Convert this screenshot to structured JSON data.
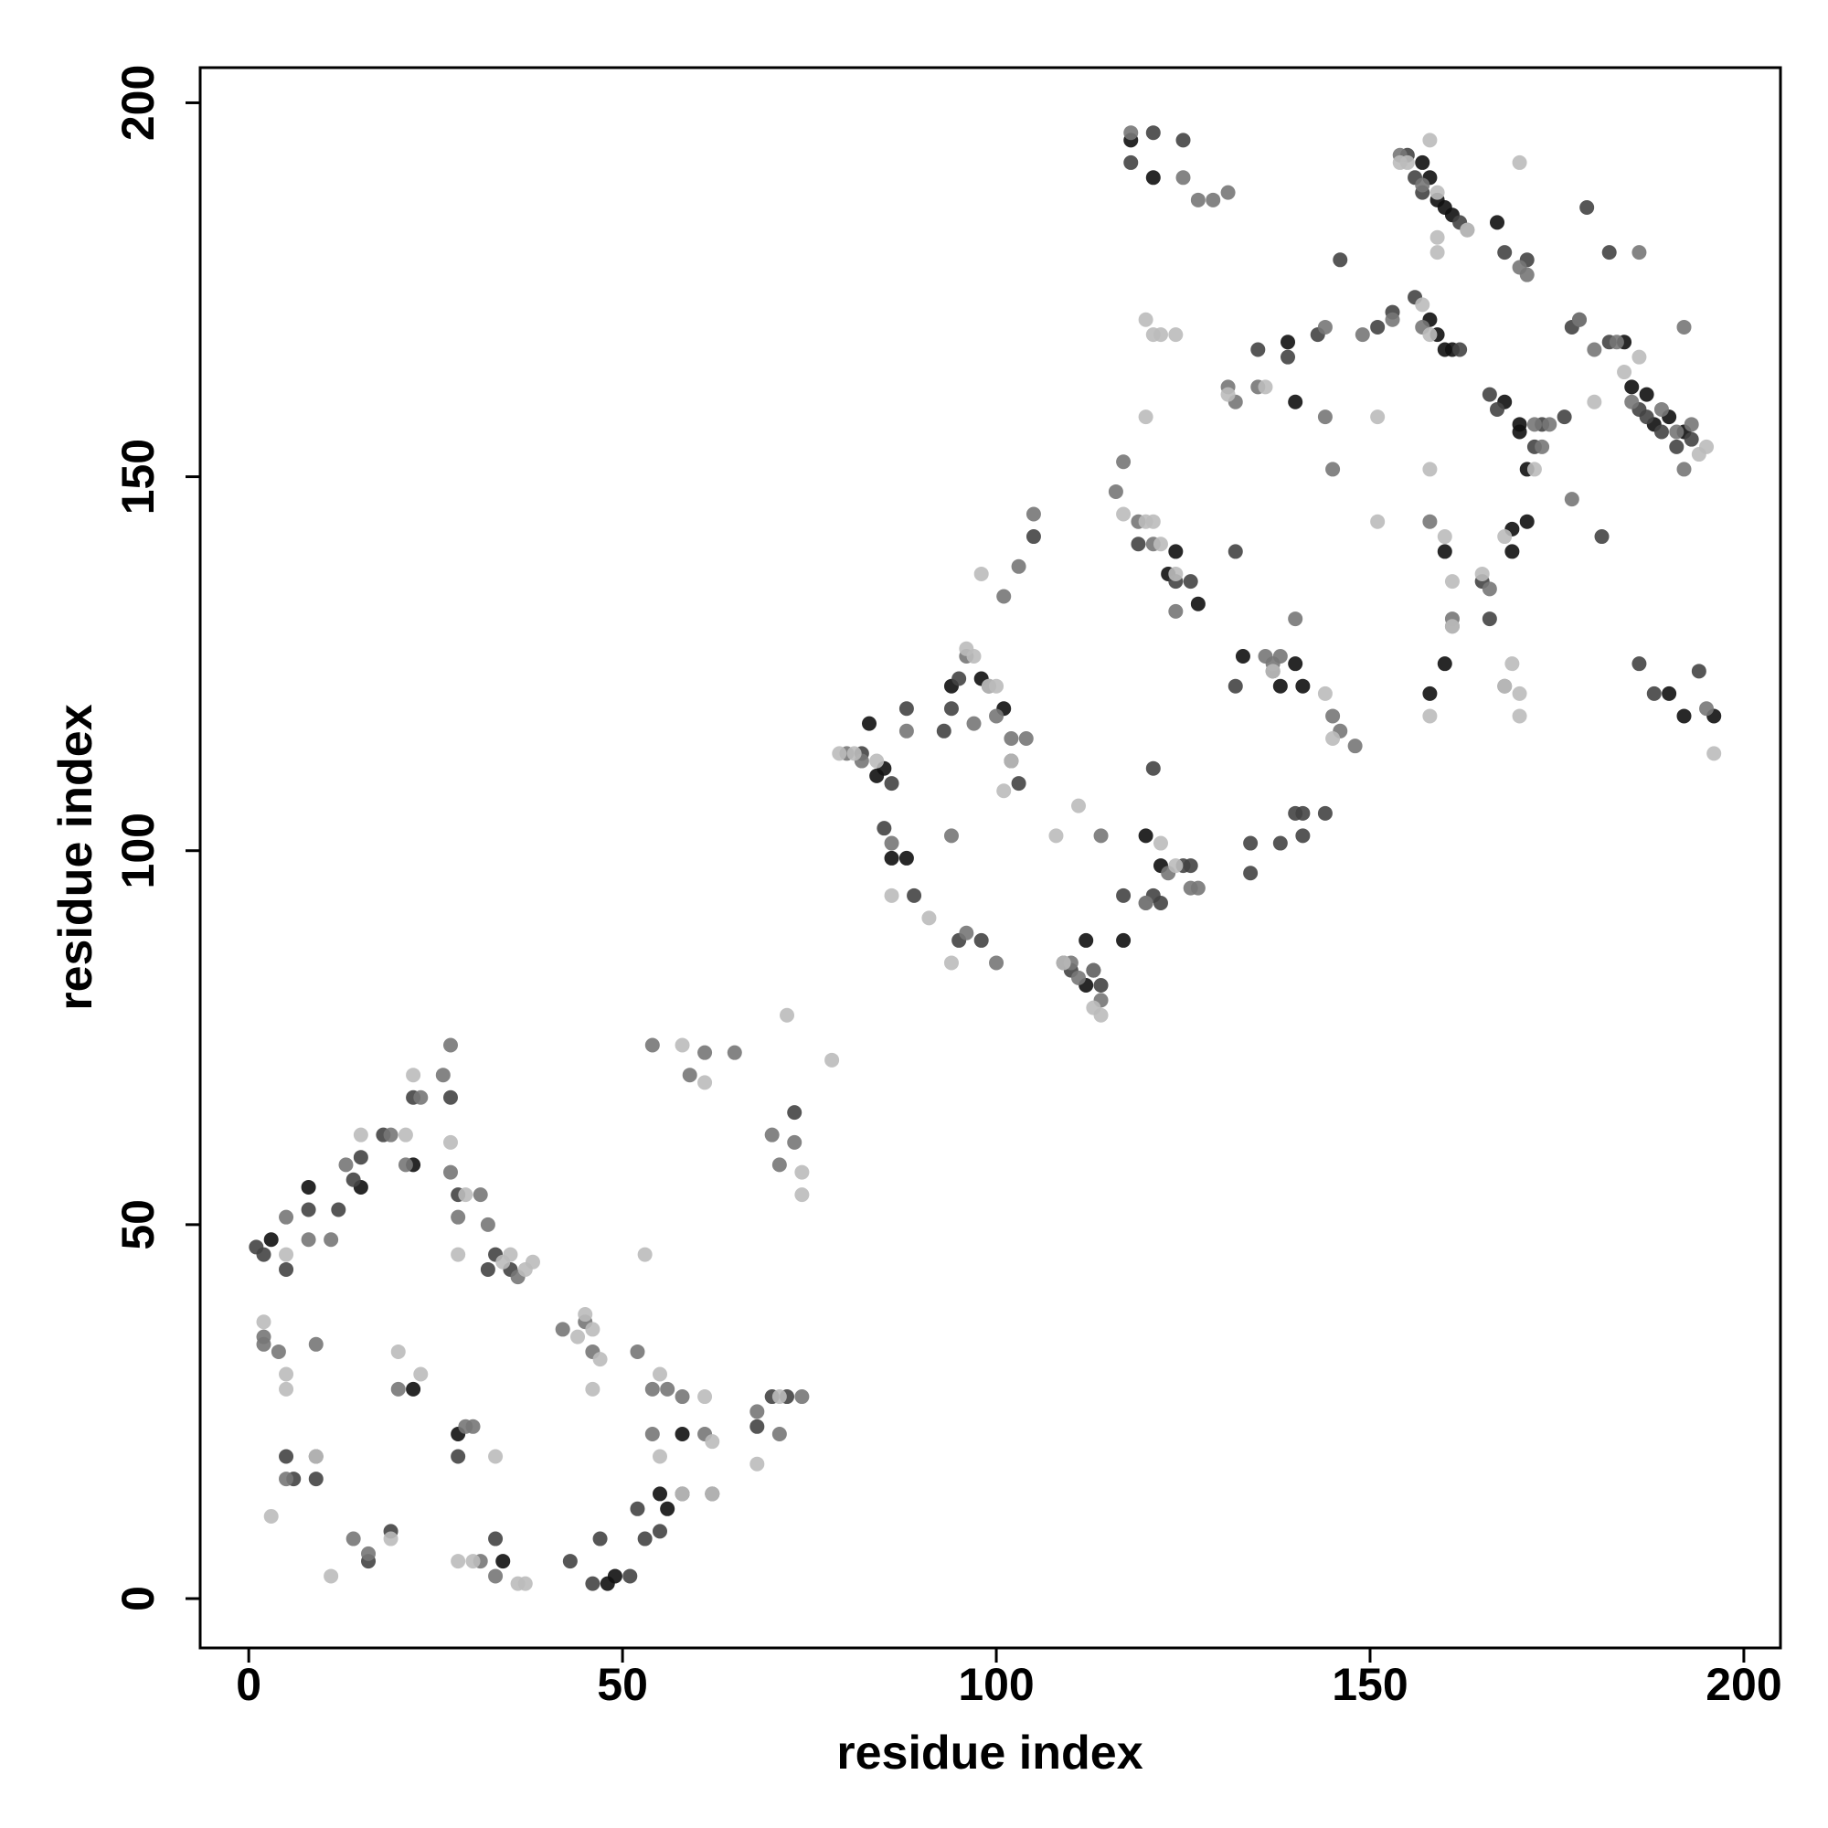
{
  "chart_data": {
    "type": "scatter",
    "x_label": "residue index",
    "y_label": "residue index",
    "xlim": [
      -6.5,
      204.9
    ],
    "ylim": [
      -6.6,
      204.7
    ],
    "xticks": [
      0,
      50,
      100,
      150,
      200
    ],
    "yticks": [
      0,
      50,
      100,
      150,
      200
    ],
    "series": [
      {
        "name": "black",
        "color": "#111111",
        "x": [
          3,
          8,
          15,
          22,
          34,
          48,
          49,
          58,
          56,
          55,
          22,
          28,
          84,
          83,
          85,
          88,
          86,
          98,
          94,
          101,
          112,
          113,
          112,
          117,
          120,
          122,
          123,
          124,
          127,
          133,
          138,
          140,
          141,
          139,
          140,
          118,
          121,
          157,
          158,
          159,
          160,
          161,
          158,
          159,
          160,
          161,
          160,
          160,
          158,
          168,
          170,
          167,
          169,
          170,
          171,
          169,
          171,
          188,
          190,
          192,
          185,
          187,
          184,
          190,
          192,
          196
        ],
        "y": [
          48,
          55,
          55,
          58,
          5,
          2,
          3,
          22,
          12,
          14,
          28,
          22,
          110,
          117,
          111,
          99,
          99,
          123,
          122,
          119,
          82,
          84,
          88,
          88,
          102,
          98,
          137,
          140,
          133,
          126,
          122,
          125,
          122,
          168,
          160,
          195,
          190,
          192,
          190,
          187,
          186,
          185,
          171,
          169,
          167,
          167,
          140,
          125,
          121,
          160,
          157,
          184,
          143,
          156,
          151,
          140,
          144,
          157,
          158,
          156,
          162,
          161,
          168,
          121,
          118,
          118
        ]
      },
      {
        "name": "dark",
        "color": "#444444",
        "x": [
          1,
          2,
          5,
          8,
          12,
          14,
          15,
          18,
          22,
          27,
          28,
          32,
          33,
          35,
          5,
          9,
          6,
          9,
          16,
          19,
          28,
          33,
          43,
          46,
          47,
          51,
          52,
          53,
          55,
          58,
          62,
          68,
          70,
          72,
          73,
          82,
          85,
          86,
          89,
          88,
          93,
          94,
          95,
          99,
          102,
          103,
          105,
          98,
          95,
          109,
          110,
          114,
          117,
          119,
          121,
          122,
          124,
          126,
          121,
          125,
          126,
          132,
          134,
          137,
          140,
          141,
          144,
          134,
          138,
          141,
          118,
          121,
          125,
          132,
          135,
          139,
          143,
          146,
          151,
          155,
          156,
          157,
          162,
          153,
          156,
          162,
          166,
          167,
          168,
          171,
          173,
          172,
          165,
          166,
          177,
          178,
          182,
          186,
          187,
          189,
          191,
          193,
          186,
          188,
          194,
          179,
          182,
          176,
          181
        ],
        "y": [
          47,
          46,
          44,
          52,
          52,
          56,
          59,
          62,
          67,
          67,
          54,
          44,
          46,
          44,
          19,
          16,
          16,
          19,
          5,
          9,
          19,
          8,
          5,
          2,
          8,
          3,
          12,
          8,
          9,
          14,
          14,
          23,
          27,
          27,
          65,
          113,
          103,
          109,
          94,
          119,
          116,
          119,
          123,
          122,
          112,
          109,
          142,
          88,
          88,
          85,
          84,
          82,
          94,
          141,
          94,
          93,
          136,
          136,
          111,
          98,
          98,
          122,
          97,
          124,
          105,
          105,
          105,
          101,
          101,
          102,
          192,
          196,
          195,
          140,
          167,
          166,
          169,
          179,
          170,
          193,
          190,
          188,
          184,
          172,
          174,
          167,
          161,
          159,
          180,
          179,
          157,
          154,
          136,
          131,
          170,
          171,
          168,
          159,
          158,
          156,
          154,
          155,
          125,
          121,
          124,
          186,
          180,
          158,
          142
        ]
      },
      {
        "name": "mid",
        "color": "#777777",
        "x": [
          2,
          5,
          8,
          11,
          13,
          19,
          21,
          23,
          26,
          27,
          27,
          28,
          31,
          32,
          36,
          2,
          4,
          9,
          5,
          14,
          16,
          20,
          29,
          30,
          31,
          33,
          42,
          45,
          46,
          52,
          54,
          54,
          56,
          58,
          61,
          68,
          71,
          74,
          54,
          59,
          61,
          65,
          70,
          71,
          73,
          80,
          82,
          86,
          88,
          96,
          97,
          100,
          102,
          104,
          101,
          103,
          105,
          94,
          96,
          100,
          113,
          110,
          111,
          114,
          114,
          120,
          123,
          126,
          127,
          116,
          117,
          119,
          121,
          124,
          120,
          131,
          132,
          136,
          137,
          138,
          140,
          145,
          146,
          148,
          144,
          118,
          125,
          127,
          129,
          131,
          135,
          144,
          145,
          149,
          154,
          157,
          163,
          158,
          161,
          153,
          157,
          161,
          170,
          171,
          172,
          166,
          168,
          173,
          174,
          178,
          180,
          183,
          185,
          189,
          191,
          193,
          195,
          177,
          186,
          192,
          192
        ],
        "y": [
          35,
          51,
          48,
          48,
          58,
          62,
          58,
          67,
          70,
          74,
          57,
          51,
          54,
          50,
          43,
          34,
          33,
          34,
          16,
          8,
          6,
          28,
          23,
          23,
          5,
          3,
          36,
          37,
          33,
          33,
          28,
          22,
          28,
          27,
          22,
          25,
          22,
          27,
          74,
          70,
          73,
          73,
          62,
          58,
          61,
          113,
          112,
          101,
          116,
          126,
          117,
          118,
          115,
          115,
          134,
          138,
          145,
          102,
          89,
          85,
          84,
          85,
          83,
          80,
          102,
          93,
          97,
          95,
          95,
          148,
          152,
          144,
          141,
          132,
          93,
          162,
          160,
          126,
          125,
          126,
          131,
          118,
          116,
          114,
          170,
          196,
          190,
          187,
          187,
          188,
          162,
          158,
          151,
          169,
          193,
          189,
          183,
          144,
          130,
          171,
          170,
          131,
          178,
          177,
          157,
          135,
          122,
          154,
          157,
          171,
          167,
          168,
          160,
          159,
          156,
          157,
          119,
          147,
          180,
          151,
          170
        ]
      },
      {
        "name": "light",
        "color": "#bbbbbb",
        "x": [
          5,
          15,
          21,
          22,
          27,
          29,
          28,
          34,
          35,
          37,
          38,
          2,
          5,
          5,
          20,
          23,
          9,
          3,
          11,
          19,
          28,
          30,
          33,
          36,
          37,
          44,
          45,
          46,
          47,
          46,
          53,
          55,
          55,
          58,
          61,
          62,
          62,
          68,
          71,
          58,
          61,
          72,
          74,
          74,
          78,
          79,
          81,
          84,
          86,
          96,
          97,
          99,
          100,
          101,
          102,
          98,
          91,
          94,
          108,
          109,
          111,
          113,
          114,
          122,
          124,
          120,
          121,
          122,
          124,
          117,
          120,
          120,
          121,
          122,
          124,
          131,
          136,
          137,
          144,
          145,
          151,
          151,
          154,
          155,
          158,
          159,
          159,
          163,
          158,
          157,
          159,
          161,
          158,
          160,
          161,
          158,
          165,
          169,
          170,
          168,
          168,
          170,
          170,
          172,
          180,
          184,
          186,
          194,
          195,
          196
        ],
        "y": [
          46,
          62,
          62,
          70,
          61,
          54,
          46,
          45,
          46,
          44,
          45,
          37,
          30,
          28,
          33,
          30,
          19,
          11,
          3,
          8,
          5,
          5,
          19,
          2,
          2,
          35,
          38,
          36,
          32,
          28,
          46,
          30,
          19,
          14,
          27,
          21,
          14,
          18,
          27,
          74,
          69,
          78,
          57,
          54,
          72,
          113,
          113,
          112,
          94,
          127,
          126,
          122,
          122,
          108,
          112,
          137,
          91,
          85,
          102,
          85,
          106,
          79,
          78,
          101,
          98,
          144,
          144,
          141,
          137,
          145,
          171,
          158,
          169,
          169,
          169,
          161,
          162,
          124,
          121,
          115,
          158,
          144,
          192,
          192,
          195,
          188,
          180,
          183,
          169,
          173,
          182,
          130,
          151,
          142,
          136,
          118,
          137,
          125,
          121,
          122,
          142,
          192,
          118,
          151,
          160,
          164,
          166,
          153,
          154,
          113
        ]
      }
    ]
  }
}
